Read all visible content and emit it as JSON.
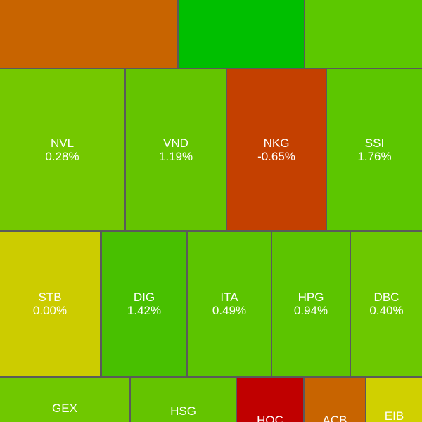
{
  "tiles": [
    {
      "ticker": "NVL",
      "change": "0.28%"
    },
    {
      "ticker": "VND",
      "change": "1.19%"
    },
    {
      "ticker": "NKG",
      "change": "-0.65%"
    },
    {
      "ticker": "SSI",
      "change": "1.76%"
    },
    {
      "ticker": "STB",
      "change": "0.00%"
    },
    {
      "ticker": "DIG",
      "change": "1.42%"
    },
    {
      "ticker": "ITA",
      "change": "0.49%"
    },
    {
      "ticker": "HPG",
      "change": "0.94%"
    },
    {
      "ticker": "DBC",
      "change": "0.40%"
    },
    {
      "ticker": "GEX"
    },
    {
      "ticker": "HSG"
    },
    {
      "ticker": "HOC"
    },
    {
      "ticker": "ACB"
    },
    {
      "ticker": "EIB"
    }
  ]
}
